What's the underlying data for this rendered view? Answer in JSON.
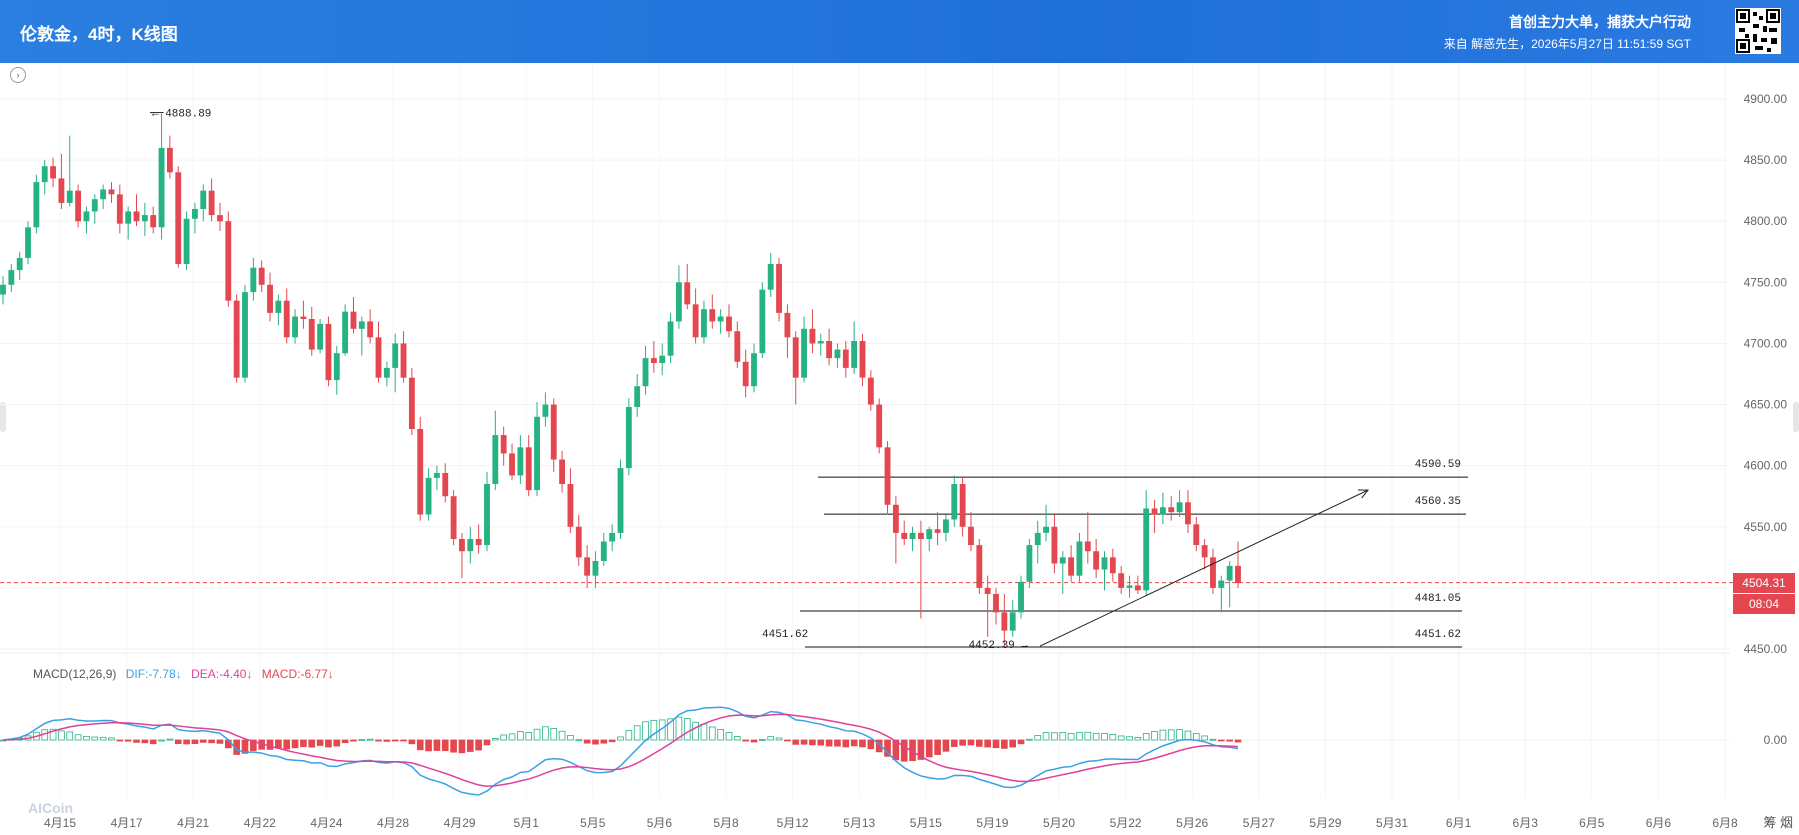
{
  "header": {
    "title": "伦敦金，4时，K线图",
    "slogan": "首创主力大单，捕获大户行动",
    "source": "来自 解惑先生，2026年5月27日 11:51:59 SGT"
  },
  "price_tag": "4504.31",
  "countdown": "08:04",
  "corner_text": "筹 烟",
  "watermark": "AICoin",
  "macd_legend": {
    "name": "MACD(12,26,9)",
    "dif": "DIF:-7.78↓",
    "dea": "DEA:-4.40↓",
    "macd": "MACD:-6.77↓"
  },
  "colors": {
    "up": "#26b281",
    "down": "#e4474f",
    "dif": "#3aa0e6",
    "dea": "#e0409a",
    "header": "#1f6fd8"
  },
  "chart_data": {
    "type": "candlestick",
    "symbol": "伦敦金",
    "interval": "4时",
    "ylim": [
      4425,
      4915
    ],
    "y_ticks": [
      "4900.00",
      "4850.00",
      "4800.00",
      "4750.00",
      "4700.00",
      "4650.00",
      "4600.00",
      "4550.00",
      "4500.00",
      "4450.00"
    ],
    "x_ticks": [
      "4月15",
      "4月17",
      "4月21",
      "4月22",
      "4月24",
      "4月28",
      "4月29",
      "5月1",
      "5月5",
      "5月6",
      "5月8",
      "5月12",
      "5月13",
      "5月15",
      "5月19",
      "5月20",
      "5月22",
      "5月26",
      "5月27",
      "5月29",
      "5月31",
      "6月1",
      "6月3",
      "6月5",
      "6月6",
      "6月8"
    ],
    "candles": [
      [
        4740,
        4755,
        4732,
        4748
      ],
      [
        4748,
        4765,
        4742,
        4760
      ],
      [
        4760,
        4775,
        4752,
        4770
      ],
      [
        4770,
        4800,
        4765,
        4795
      ],
      [
        4795,
        4838,
        4790,
        4832
      ],
      [
        4832,
        4850,
        4822,
        4845
      ],
      [
        4845,
        4852,
        4828,
        4835
      ],
      [
        4835,
        4855,
        4810,
        4815
      ],
      [
        4815,
        4870,
        4812,
        4825
      ],
      [
        4825,
        4830,
        4795,
        4800
      ],
      [
        4800,
        4812,
        4790,
        4808
      ],
      [
        4808,
        4822,
        4798,
        4818
      ],
      [
        4818,
        4830,
        4810,
        4826
      ],
      [
        4826,
        4832,
        4815,
        4822
      ],
      [
        4822,
        4830,
        4790,
        4798
      ],
      [
        4798,
        4812,
        4785,
        4808
      ],
      [
        4808,
        4822,
        4796,
        4800
      ],
      [
        4800,
        4815,
        4788,
        4805
      ],
      [
        4805,
        4812,
        4790,
        4795
      ],
      [
        4795,
        4888,
        4785,
        4860
      ],
      [
        4860,
        4870,
        4835,
        4840
      ],
      [
        4840,
        4845,
        4762,
        4765
      ],
      [
        4765,
        4808,
        4760,
        4802
      ],
      [
        4802,
        4815,
        4790,
        4810
      ],
      [
        4810,
        4830,
        4800,
        4825
      ],
      [
        4825,
        4835,
        4800,
        4805
      ],
      [
        4805,
        4815,
        4792,
        4800
      ],
      [
        4800,
        4808,
        4730,
        4735
      ],
      [
        4735,
        4740,
        4668,
        4672
      ],
      [
        4672,
        4748,
        4668,
        4742
      ],
      [
        4742,
        4770,
        4735,
        4762
      ],
      [
        4762,
        4768,
        4742,
        4748
      ],
      [
        4748,
        4758,
        4718,
        4725
      ],
      [
        4725,
        4740,
        4715,
        4735
      ],
      [
        4735,
        4745,
        4700,
        4705
      ],
      [
        4705,
        4728,
        4700,
        4722
      ],
      [
        4722,
        4735,
        4712,
        4720
      ],
      [
        4720,
        4730,
        4690,
        4695
      ],
      [
        4695,
        4720,
        4692,
        4716
      ],
      [
        4716,
        4722,
        4665,
        4670
      ],
      [
        4670,
        4698,
        4658,
        4692
      ],
      [
        4692,
        4732,
        4690,
        4726
      ],
      [
        4726,
        4738,
        4708,
        4712
      ],
      [
        4712,
        4722,
        4690,
        4718
      ],
      [
        4718,
        4728,
        4700,
        4705
      ],
      [
        4705,
        4718,
        4668,
        4672
      ],
      [
        4672,
        4685,
        4665,
        4680
      ],
      [
        4680,
        4708,
        4660,
        4700
      ],
      [
        4700,
        4710,
        4668,
        4672
      ],
      [
        4672,
        4680,
        4625,
        4630
      ],
      [
        4630,
        4640,
        4555,
        4560
      ],
      [
        4560,
        4598,
        4555,
        4590
      ],
      [
        4590,
        4600,
        4580,
        4594
      ],
      [
        4594,
        4602,
        4570,
        4575
      ],
      [
        4575,
        4580,
        4535,
        4540
      ],
      [
        4540,
        4545,
        4508,
        4530
      ],
      [
        4530,
        4550,
        4520,
        4540
      ],
      [
        4540,
        4552,
        4528,
        4535
      ],
      [
        4535,
        4595,
        4530,
        4585
      ],
      [
        4585,
        4645,
        4580,
        4625
      ],
      [
        4625,
        4632,
        4600,
        4610
      ],
      [
        4610,
        4618,
        4588,
        4592
      ],
      [
        4592,
        4625,
        4585,
        4615
      ],
      [
        4615,
        4625,
        4575,
        4580
      ],
      [
        4580,
        4652,
        4575,
        4640
      ],
      [
        4640,
        4660,
        4632,
        4650
      ],
      [
        4650,
        4655,
        4595,
        4605
      ],
      [
        4605,
        4612,
        4578,
        4585
      ],
      [
        4585,
        4598,
        4545,
        4550
      ],
      [
        4550,
        4560,
        4518,
        4525
      ],
      [
        4525,
        4535,
        4500,
        4510
      ],
      [
        4510,
        4530,
        4500,
        4522
      ],
      [
        4522,
        4545,
        4518,
        4538
      ],
      [
        4538,
        4552,
        4530,
        4545
      ],
      [
        4545,
        4605,
        4540,
        4598
      ],
      [
        4598,
        4655,
        4592,
        4648
      ],
      [
        4648,
        4675,
        4640,
        4665
      ],
      [
        4665,
        4698,
        4658,
        4688
      ],
      [
        4688,
        4702,
        4676,
        4684
      ],
      [
        4684,
        4700,
        4674,
        4690
      ],
      [
        4690,
        4725,
        4684,
        4718
      ],
      [
        4718,
        4764,
        4712,
        4750
      ],
      [
        4750,
        4765,
        4728,
        4732
      ],
      [
        4732,
        4745,
        4700,
        4705
      ],
      [
        4705,
        4735,
        4700,
        4728
      ],
      [
        4728,
        4740,
        4712,
        4718
      ],
      [
        4718,
        4728,
        4708,
        4722
      ],
      [
        4722,
        4732,
        4705,
        4710
      ],
      [
        4710,
        4718,
        4680,
        4685
      ],
      [
        4685,
        4695,
        4656,
        4665
      ],
      [
        4665,
        4700,
        4660,
        4692
      ],
      [
        4692,
        4750,
        4688,
        4744
      ],
      [
        4744,
        4774,
        4738,
        4765
      ],
      [
        4765,
        4770,
        4718,
        4725
      ],
      [
        4725,
        4732,
        4688,
        4705
      ],
      [
        4705,
        4710,
        4650,
        4672
      ],
      [
        4672,
        4722,
        4668,
        4712
      ],
      [
        4712,
        4728,
        4692,
        4700
      ],
      [
        4700,
        4708,
        4690,
        4702
      ],
      [
        4702,
        4712,
        4682,
        4688
      ],
      [
        4688,
        4700,
        4680,
        4695
      ],
      [
        4695,
        4702,
        4672,
        4680
      ],
      [
        4680,
        4718,
        4675,
        4702
      ],
      [
        4702,
        4708,
        4665,
        4672
      ],
      [
        4672,
        4678,
        4645,
        4650
      ],
      [
        4650,
        4655,
        4610,
        4615
      ],
      [
        4615,
        4620,
        4560,
        4568
      ],
      [
        4568,
        4575,
        4520,
        4545
      ],
      [
        4545,
        4555,
        4535,
        4540
      ],
      [
        4540,
        4550,
        4530,
        4545
      ],
      [
        4545,
        4555,
        4475,
        4540
      ],
      [
        4540,
        4550,
        4530,
        4548
      ],
      [
        4548,
        4562,
        4535,
        4545
      ],
      [
        4545,
        4560,
        4538,
        4556
      ],
      [
        4556,
        4592,
        4550,
        4585
      ],
      [
        4585,
        4590,
        4542,
        4550
      ],
      [
        4550,
        4562,
        4530,
        4535
      ],
      [
        4535,
        4540,
        4495,
        4500
      ],
      [
        4500,
        4510,
        4460,
        4495
      ],
      [
        4495,
        4500,
        4470,
        4480
      ],
      [
        4480,
        4495,
        4452,
        4465
      ],
      [
        4465,
        4490,
        4460,
        4480
      ],
      [
        4480,
        4510,
        4475,
        4505
      ],
      [
        4505,
        4540,
        4500,
        4535
      ],
      [
        4535,
        4555,
        4520,
        4545
      ],
      [
        4545,
        4568,
        4538,
        4550
      ],
      [
        4550,
        4560,
        4512,
        4520
      ],
      [
        4520,
        4530,
        4495,
        4525
      ],
      [
        4525,
        4535,
        4505,
        4510
      ],
      [
        4510,
        4545,
        4505,
        4538
      ],
      [
        4538,
        4562,
        4520,
        4530
      ],
      [
        4530,
        4540,
        4508,
        4515
      ],
      [
        4515,
        4530,
        4498,
        4525
      ],
      [
        4525,
        4532,
        4505,
        4512
      ],
      [
        4512,
        4518,
        4495,
        4500
      ],
      [
        4500,
        4510,
        4492,
        4502
      ],
      [
        4502,
        4510,
        4495,
        4498
      ],
      [
        4498,
        4580,
        4494,
        4565
      ],
      [
        4565,
        4572,
        4545,
        4560
      ],
      [
        4560,
        4578,
        4552,
        4566
      ],
      [
        4566,
        4575,
        4555,
        4562
      ],
      [
        4562,
        4580,
        4558,
        4570
      ],
      [
        4570,
        4580,
        4545,
        4552
      ],
      [
        4552,
        4558,
        4530,
        4535
      ],
      [
        4535,
        4540,
        4515,
        4525
      ],
      [
        4525,
        4532,
        4495,
        4500
      ],
      [
        4500,
        4510,
        4480,
        4506
      ],
      [
        4506,
        4522,
        4484,
        4518
      ],
      [
        4518,
        4538,
        4500,
        4504
      ]
    ],
    "levels": [
      {
        "value": 4590.59,
        "label": "4590.59"
      },
      {
        "value": 4560.35,
        "label": "4560.35"
      },
      {
        "value": 4481.05,
        "label": "4481.05"
      },
      {
        "value": 4451.62,
        "label": "4451.62"
      }
    ],
    "annotations": [
      {
        "text": "4888.89",
        "value": 4888.89
      },
      {
        "text": "4452.39",
        "value": 4452.39
      },
      {
        "text": "4451.62",
        "value": 4451.62
      }
    ],
    "current_price": 4504.31,
    "macd": {
      "params": "12,26,9",
      "dif": -7.78,
      "dea": -4.4,
      "macd": -6.77,
      "y_ticks": [
        "0.00"
      ]
    }
  }
}
